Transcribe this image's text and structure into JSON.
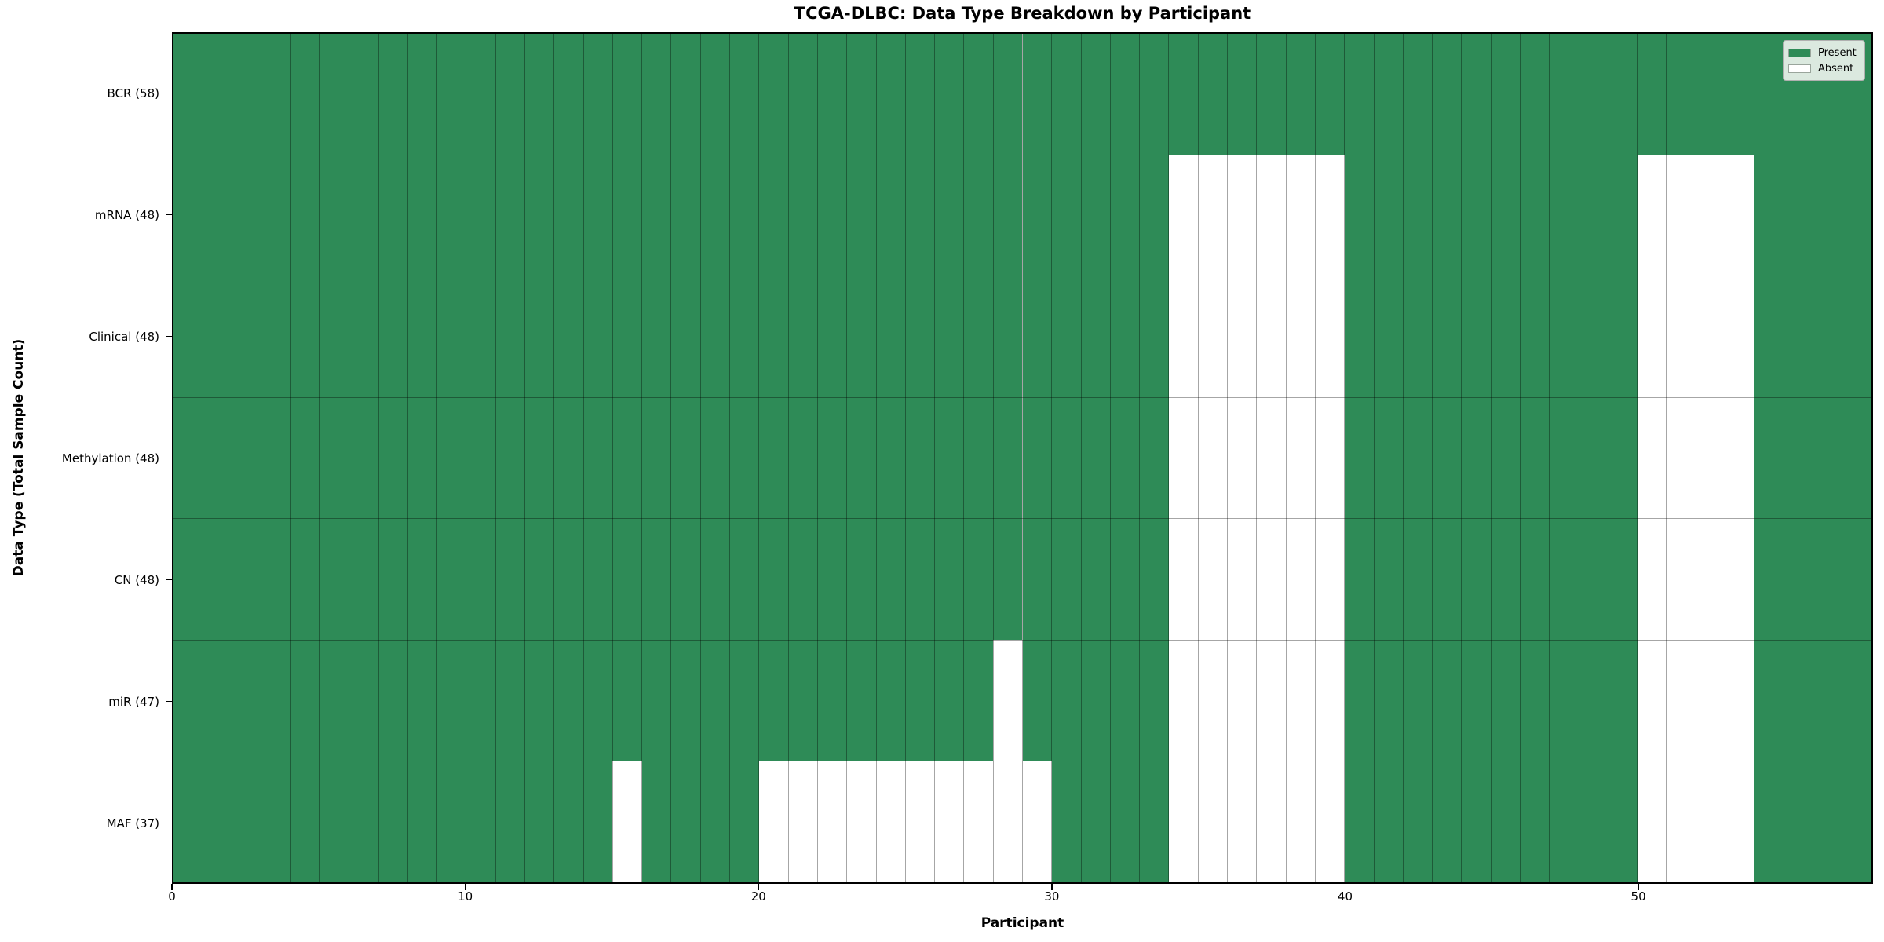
{
  "chart": {
    "title": "TCGA-DLBC: Data Type Breakdown by Participant",
    "xlabel": "Participant",
    "ylabel": "Data Type (Total Sample Count)"
  },
  "legend": {
    "position": "upper right",
    "background_color": "#dbe9df",
    "border_color": "#b0b0b0",
    "items": [
      {
        "label": "Present",
        "color": "#2e8b57"
      },
      {
        "label": "Absent",
        "color": "#ffffff"
      }
    ]
  },
  "chart_data": {
    "type": "heatmap",
    "title": "TCGA-DLBC: Data Type Breakdown by Participant",
    "xlabel": "Participant",
    "ylabel": "Data Type (Total Sample Count)",
    "n_participants": 58,
    "x_ticks": [
      0,
      10,
      20,
      30,
      40,
      50
    ],
    "xlim": [
      0,
      58
    ],
    "grid": true,
    "present_color": "#2e8b57",
    "absent_color": "#ffffff",
    "grid_color": "rgba(0,0,0,0.35)",
    "spine_color": "#000000",
    "legend_position": "upper right",
    "rows": [
      {
        "label": "BCR (58)",
        "data_type": "BCR",
        "total_sample_count": 58,
        "absent_participants": []
      },
      {
        "label": "mRNA (48)",
        "data_type": "mRNA",
        "total_sample_count": 48,
        "absent_participants": [
          34,
          35,
          36,
          37,
          38,
          39,
          50,
          51,
          52,
          53
        ]
      },
      {
        "label": "Clinical (48)",
        "data_type": "Clinical",
        "total_sample_count": 48,
        "absent_participants": [
          34,
          35,
          36,
          37,
          38,
          39,
          50,
          51,
          52,
          53
        ]
      },
      {
        "label": "Methylation (48)",
        "data_type": "Methylation",
        "total_sample_count": 48,
        "absent_participants": [
          34,
          35,
          36,
          37,
          38,
          39,
          50,
          51,
          52,
          53
        ]
      },
      {
        "label": "CN (48)",
        "data_type": "CN",
        "total_sample_count": 48,
        "absent_participants": [
          34,
          35,
          36,
          37,
          38,
          39,
          50,
          51,
          52,
          53
        ]
      },
      {
        "label": "miR (47)",
        "data_type": "miR",
        "total_sample_count": 47,
        "absent_participants": [
          28,
          34,
          35,
          36,
          37,
          38,
          39,
          50,
          51,
          52,
          53
        ]
      },
      {
        "label": "MAF (37)",
        "data_type": "MAF",
        "total_sample_count": 37,
        "absent_participants": [
          15,
          20,
          21,
          22,
          23,
          24,
          25,
          26,
          27,
          28,
          29,
          34,
          35,
          36,
          37,
          38,
          39,
          50,
          51,
          52,
          53
        ]
      }
    ]
  }
}
